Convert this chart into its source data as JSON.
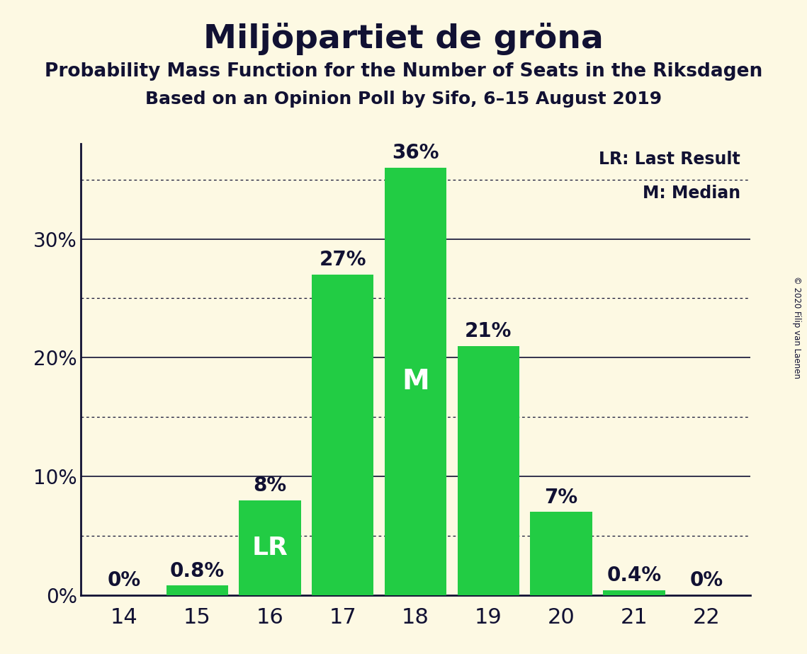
{
  "title": "Miljöpartiet de gröna",
  "subtitle1": "Probability Mass Function for the Number of Seats in the Riksdagen",
  "subtitle2": "Based on an Opinion Poll by Sifo, 6–15 August 2019",
  "copyright": "© 2020 Filip van Laenen",
  "seats": [
    14,
    15,
    16,
    17,
    18,
    19,
    20,
    21,
    22
  ],
  "probabilities": [
    0.0,
    0.8,
    8.0,
    27.0,
    36.0,
    21.0,
    7.0,
    0.4,
    0.0
  ],
  "bar_color": "#22cc44",
  "text_color": "#111133",
  "lr_seat": 16,
  "median_seat": 18,
  "lr_label": "LR",
  "median_label": "M",
  "legend_lr": "LR: Last Result",
  "legend_m": "M: Median",
  "background_color": "#fdf9e3",
  "ylim": [
    0,
    38
  ],
  "yticks": [
    0,
    10,
    20,
    30
  ],
  "solid_gridlines": [
    10,
    20,
    30
  ],
  "dotted_gridlines": [
    5,
    15,
    25,
    35
  ],
  "title_fontsize": 34,
  "subtitle1_fontsize": 19,
  "subtitle2_fontsize": 18,
  "tick_fontsize": 20,
  "pct_label_fontsize": 20,
  "inside_label_fontsize": 26,
  "legend_fontsize": 17
}
